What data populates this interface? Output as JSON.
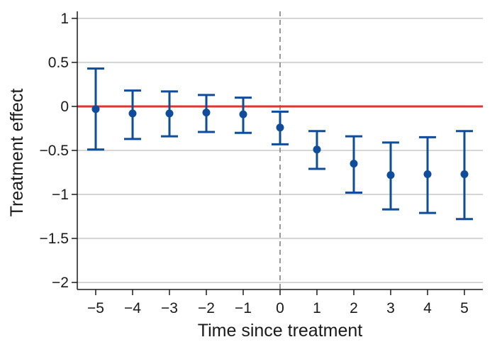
{
  "chart_data": {
    "type": "scatter",
    "title": "",
    "xlabel": "Time since treatment",
    "ylabel": "Treatment effect",
    "x_ticks": [
      -5,
      -4,
      -3,
      -2,
      -1,
      0,
      1,
      2,
      3,
      4,
      5
    ],
    "x_tick_labels": [
      "−5",
      "−4",
      "−3",
      "−2",
      "−1",
      "0",
      "1",
      "2",
      "3",
      "4",
      "5"
    ],
    "y_ticks": [
      1,
      0.5,
      0,
      -0.5,
      -1,
      -1.5,
      -2
    ],
    "y_tick_labels": [
      "1",
      "0.5",
      "0",
      "−0.5",
      "−1",
      "−1.5",
      "−2"
    ],
    "xlim": [
      -5.5,
      5.5
    ],
    "ylim": [
      -2.08,
      1.08
    ],
    "grid": "horizontal",
    "reference_line": {
      "y": 0,
      "color": "#e8302c"
    },
    "event_line": {
      "x": 0,
      "style": "dashed",
      "color": "#777777"
    },
    "point_color": "#0f4c9c",
    "points": [
      {
        "x": -5,
        "y": -0.03,
        "lo": -0.49,
        "hi": 0.43
      },
      {
        "x": -4,
        "y": -0.08,
        "lo": -0.37,
        "hi": 0.18
      },
      {
        "x": -3,
        "y": -0.08,
        "lo": -0.34,
        "hi": 0.17
      },
      {
        "x": -2,
        "y": -0.07,
        "lo": -0.29,
        "hi": 0.13
      },
      {
        "x": -1,
        "y": -0.09,
        "lo": -0.3,
        "hi": 0.1
      },
      {
        "x": 0,
        "y": -0.24,
        "lo": -0.43,
        "hi": -0.06
      },
      {
        "x": 1,
        "y": -0.49,
        "lo": -0.71,
        "hi": -0.28
      },
      {
        "x": 2,
        "y": -0.65,
        "lo": -0.98,
        "hi": -0.34
      },
      {
        "x": 3,
        "y": -0.78,
        "lo": -1.17,
        "hi": -0.41
      },
      {
        "x": 4,
        "y": -0.77,
        "lo": -1.21,
        "hi": -0.35
      },
      {
        "x": 5,
        "y": -0.77,
        "lo": -1.28,
        "hi": -0.28
      }
    ]
  }
}
